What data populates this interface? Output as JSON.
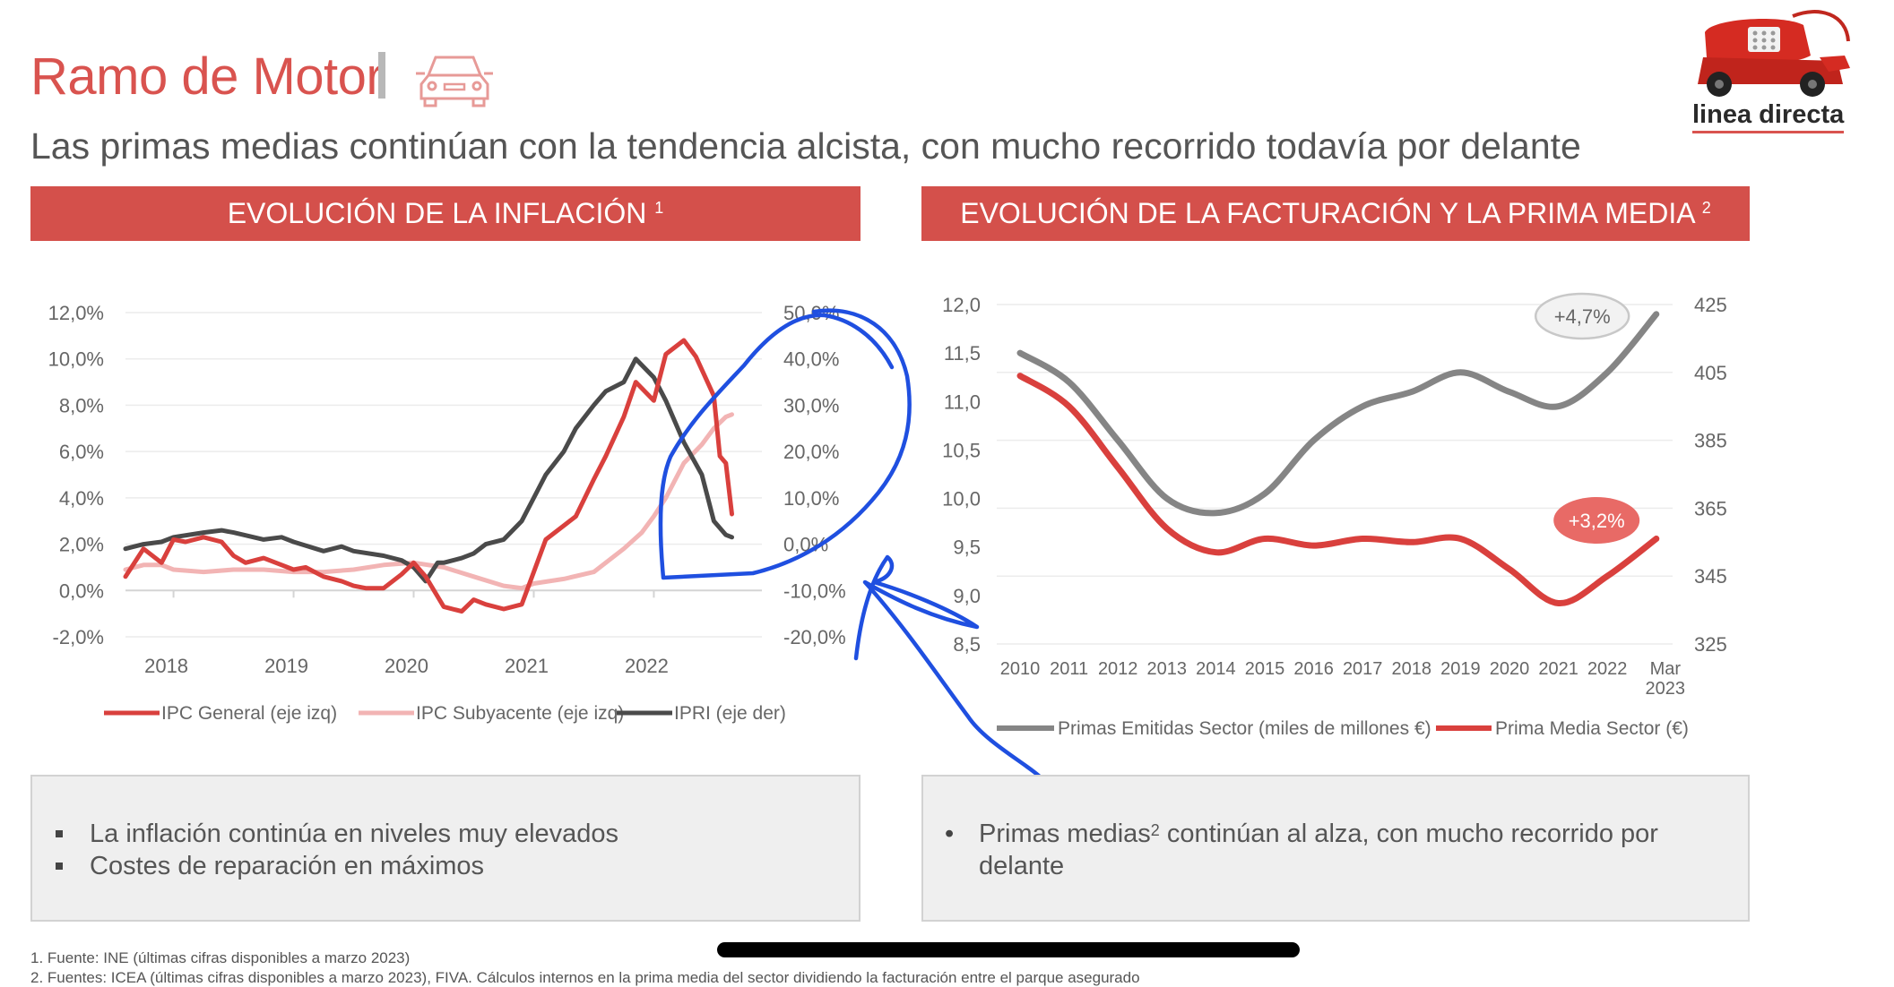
{
  "header": {
    "title": "Ramo de Motor",
    "subtitle": "Las primas medias continúan con la tendencia alcista, con mucho recorrido todavía por delante",
    "logo_text": "linea directa"
  },
  "banners": {
    "left": {
      "text": "EVOLUCIÓN DE LA INFLACIÓN",
      "sup": "1"
    },
    "right": {
      "text": "EVOLUCIÓN DE LA FACTURACIÓN Y LA PRIMA MEDIA",
      "sup": "2"
    }
  },
  "boxes": {
    "left": {
      "items": [
        "La inflación continúa en niveles muy elevados",
        "Costes de reparación en máximos"
      ]
    },
    "right": {
      "pre": "Primas medias",
      "sup": "2",
      "post": " continúan al alza, con mucho recorrido por delante"
    }
  },
  "footnotes": [
    "1. Fuente: INE (últimas cifras disponibles a marzo 2023)",
    "2. Fuentes: ICEA (últimas cifras disponibles a marzo 2023), FIVA. Cálculos internos en la prima media del sector dividiendo la facturación entre el parque asegurado"
  ],
  "colors": {
    "accent_red": "#d4504b",
    "ipc_general": "#d9403d",
    "ipc_subyacente": "#f2b4b4",
    "ipri": "#4a4a4a",
    "primas_emitidas": "#858585",
    "prima_media": "#d9403d",
    "annotation_blue": "#1f4fe0"
  },
  "chart_data": [
    {
      "type": "line",
      "y_left": {
        "ylim": [
          -2,
          12
        ],
        "ticks": [
          -2,
          0,
          2,
          4,
          6,
          8,
          10,
          12
        ],
        "tick_labels": [
          "-2,0%",
          "0,0%",
          "2,0%",
          "4,0%",
          "6,0%",
          "8,0%",
          "10,0%",
          "12,0%"
        ]
      },
      "y_right": {
        "ylim": [
          -20,
          50
        ],
        "ticks": [
          -20,
          -10,
          0,
          10,
          20,
          30,
          40,
          50
        ],
        "tick_labels": [
          "-20,0%",
          "-10,0%",
          "0,0%",
          "10,0%",
          "20,0%",
          "30,0%",
          "40,0%",
          "50,0%"
        ]
      },
      "xlim": [
        2017.6,
        2022.9
      ],
      "x_ticks": [
        2018,
        2019,
        2020,
        2021,
        2022
      ],
      "x_tick_labels": [
        "2018",
        "2019",
        "2020",
        "2021",
        "2022"
      ],
      "legend_position": "bottom",
      "series": [
        {
          "name": "IPC General (eje izq)",
          "axis": "left",
          "x": [
            2017.6,
            2017.75,
            2017.9,
            2018.0,
            2018.1,
            2018.25,
            2018.4,
            2018.5,
            2018.6,
            2018.75,
            2018.9,
            2019.0,
            2019.1,
            2019.25,
            2019.4,
            2019.5,
            2019.6,
            2019.75,
            2019.9,
            2020.0,
            2020.1,
            2020.25,
            2020.4,
            2020.5,
            2020.6,
            2020.75,
            2020.9,
            2021.0,
            2021.1,
            2021.25,
            2021.35,
            2021.5,
            2021.6,
            2021.75,
            2021.85,
            2022.0,
            2022.1,
            2022.25,
            2022.35,
            2022.5,
            2022.55,
            2022.6,
            2022.65
          ],
          "y": [
            0.6,
            1.8,
            1.2,
            2.2,
            2.1,
            2.3,
            2.1,
            1.5,
            1.2,
            1.4,
            1.1,
            0.9,
            1.0,
            0.6,
            0.4,
            0.2,
            0.1,
            0.1,
            0.7,
            1.2,
            0.6,
            -0.7,
            -0.9,
            -0.4,
            -0.6,
            -0.8,
            -0.6,
            0.8,
            2.2,
            2.8,
            3.2,
            4.8,
            5.8,
            7.5,
            9.0,
            8.2,
            10.2,
            10.8,
            10.1,
            8.4,
            5.8,
            5.5,
            3.3
          ]
        },
        {
          "name": "IPC Subyacente (eje izq)",
          "axis": "left",
          "x": [
            2017.6,
            2017.75,
            2017.9,
            2018.0,
            2018.25,
            2018.5,
            2018.75,
            2019.0,
            2019.25,
            2019.5,
            2019.75,
            2020.0,
            2020.25,
            2020.5,
            2020.75,
            2020.9,
            2021.0,
            2021.25,
            2021.5,
            2021.75,
            2021.9,
            2022.0,
            2022.1,
            2022.25,
            2022.4,
            2022.5,
            2022.6,
            2022.65
          ],
          "y": [
            0.9,
            1.1,
            1.1,
            0.9,
            0.8,
            0.9,
            0.9,
            0.8,
            0.8,
            0.9,
            1.1,
            1.2,
            1.0,
            0.6,
            0.2,
            0.1,
            0.3,
            0.5,
            0.8,
            1.8,
            2.5,
            3.2,
            4.0,
            5.5,
            6.3,
            7.0,
            7.5,
            7.6
          ]
        },
        {
          "name": "IPRI (eje der)",
          "axis": "right",
          "x": [
            2017.6,
            2017.75,
            2017.9,
            2018.0,
            2018.25,
            2018.4,
            2018.5,
            2018.75,
            2018.9,
            2019.0,
            2019.25,
            2019.4,
            2019.5,
            2019.75,
            2019.9,
            2020.0,
            2020.1,
            2020.2,
            2020.25,
            2020.4,
            2020.5,
            2020.6,
            2020.75,
            2020.9,
            2021.0,
            2021.1,
            2021.25,
            2021.35,
            2021.5,
            2021.6,
            2021.75,
            2021.85,
            2022.0,
            2022.1,
            2022.25,
            2022.4,
            2022.5,
            2022.6,
            2022.65
          ],
          "y": [
            -1,
            0,
            0.5,
            1.5,
            2.5,
            3,
            2.5,
            1,
            1.5,
            0.5,
            -1.5,
            -0.5,
            -1.5,
            -2.5,
            -3.5,
            -5,
            -8,
            -4,
            -4,
            -3,
            -2,
            0,
            1,
            5,
            10,
            15,
            20,
            25,
            30,
            33,
            35,
            40,
            36,
            31,
            22,
            15,
            5,
            2,
            1.5
          ]
        }
      ]
    },
    {
      "type": "line",
      "categories": [
        "2010",
        "2011",
        "2012",
        "2013",
        "2014",
        "2015",
        "2016",
        "2017",
        "2018",
        "2019",
        "2020",
        "2021",
        "2022",
        "Mar 2023"
      ],
      "y_left": {
        "ylim": [
          8.5,
          12.0
        ],
        "ticks": [
          8.5,
          9.0,
          9.5,
          10.0,
          10.5,
          11.0,
          11.5,
          12.0
        ],
        "tick_labels": [
          "8,5",
          "9,0",
          "9,5",
          "10,0",
          "10,5",
          "11,0",
          "11,5",
          "12,0"
        ]
      },
      "y_right": {
        "ylim": [
          325,
          425
        ],
        "ticks": [
          325,
          345,
          365,
          385,
          405,
          425
        ],
        "tick_labels": [
          "325",
          "345",
          "365",
          "385",
          "405",
          "425"
        ]
      },
      "legend_position": "bottom",
      "series": [
        {
          "name": "Primas Emitidas Sector (miles de millones €)",
          "axis": "left",
          "values": [
            11.5,
            11.2,
            10.6,
            10.0,
            9.85,
            10.05,
            10.6,
            10.95,
            11.1,
            11.3,
            11.1,
            10.95,
            11.3,
            11.9
          ]
        },
        {
          "name": "Prima Media Sector (€)",
          "axis": "right",
          "values": [
            404,
            395,
            377,
            359,
            352,
            356,
            354,
            356,
            355,
            356,
            347,
            337,
            345,
            356
          ]
        }
      ],
      "annotations": [
        {
          "text": "+4,7%",
          "series": "Primas Emitidas Sector (miles de millones €)"
        },
        {
          "text": "+3,2%",
          "series": "Prima Media Sector (€)"
        }
      ]
    }
  ]
}
